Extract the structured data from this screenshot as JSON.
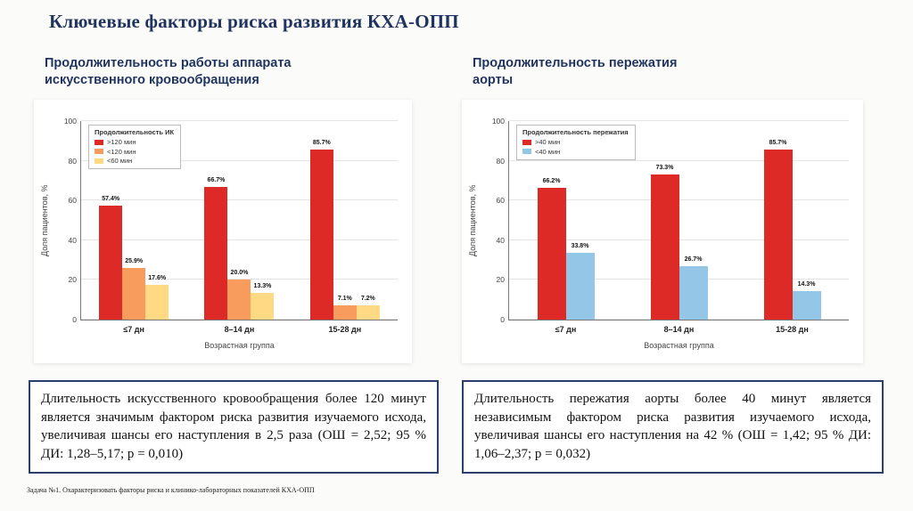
{
  "slide": {
    "title": "Ключевые факторы риска развития КХА-ОПП",
    "left_subtitle": "Продолжительность работы аппарата искусственного кровообращения",
    "right_subtitle": "Продолжительность пережатия аорты",
    "left_note": "Длительность искусственного кровообращения более 120 минут является значимым фактором риска развития изучаемого исхода, увеличивая шансы его наступления в 2,5 раза (ОШ = 2,52; 95 % ДИ: 1,28–5,17; p = 0,010)",
    "right_note": "Длительность пережатия аорты более 40 минут является независимым фактором риска развития изучаемого исхода, увеличивая шансы его наступления на 42 % (ОШ = 1,42; 95 % ДИ: 1,06–2,37; p = 0,032)",
    "footer": "Задача №1. Охарактеризовать факторы риска и клинико-лабораторных показателей КХА-ОПП"
  },
  "colors": {
    "title_navy": "#1e335f",
    "note_border": "#2c3e6b",
    "bar_red": "#de2a26",
    "bar_orange": "#f89c5e",
    "bar_yellow": "#ffd983",
    "bar_blue": "#94c6e7"
  },
  "chart_data": [
    {
      "type": "bar",
      "legend_title": "Продолжительность ИК",
      "legend_position": "upper left",
      "categories": [
        "≤7 дн",
        "8–14 дн",
        "15-28 дн"
      ],
      "series": [
        {
          "name": ">120 мин",
          "color": "#de2a26",
          "values": [
            57.4,
            66.7,
            85.7
          ]
        },
        {
          "name": "<120 мин",
          "color": "#f89c5e",
          "values": [
            25.9,
            20.0,
            7.1
          ]
        },
        {
          "name": "<60 мин",
          "color": "#ffd983",
          "values": [
            17.6,
            13.3,
            7.2
          ]
        }
      ],
      "xlabel": "Возрастная группа",
      "ylabel": "Доля пациентов, %",
      "ylim": [
        0,
        100
      ],
      "yticks": [
        0,
        20,
        40,
        60,
        80,
        100
      ],
      "grid": true
    },
    {
      "type": "bar",
      "legend_title": "Продолжительность пережатия",
      "legend_position": "upper left",
      "categories": [
        "≤7 дн",
        "8–14 дн",
        "15-28 дн"
      ],
      "series": [
        {
          "name": ">40 мин",
          "color": "#de2a26",
          "values": [
            66.2,
            73.3,
            85.7
          ]
        },
        {
          "name": "<40 мин",
          "color": "#94c6e7",
          "values": [
            33.8,
            26.7,
            14.3
          ]
        }
      ],
      "xlabel": "Возрастная группа",
      "ylabel": "Доля пациентов, %",
      "ylim": [
        0,
        100
      ],
      "yticks": [
        0,
        20,
        40,
        60,
        80,
        100
      ],
      "grid": true
    }
  ]
}
